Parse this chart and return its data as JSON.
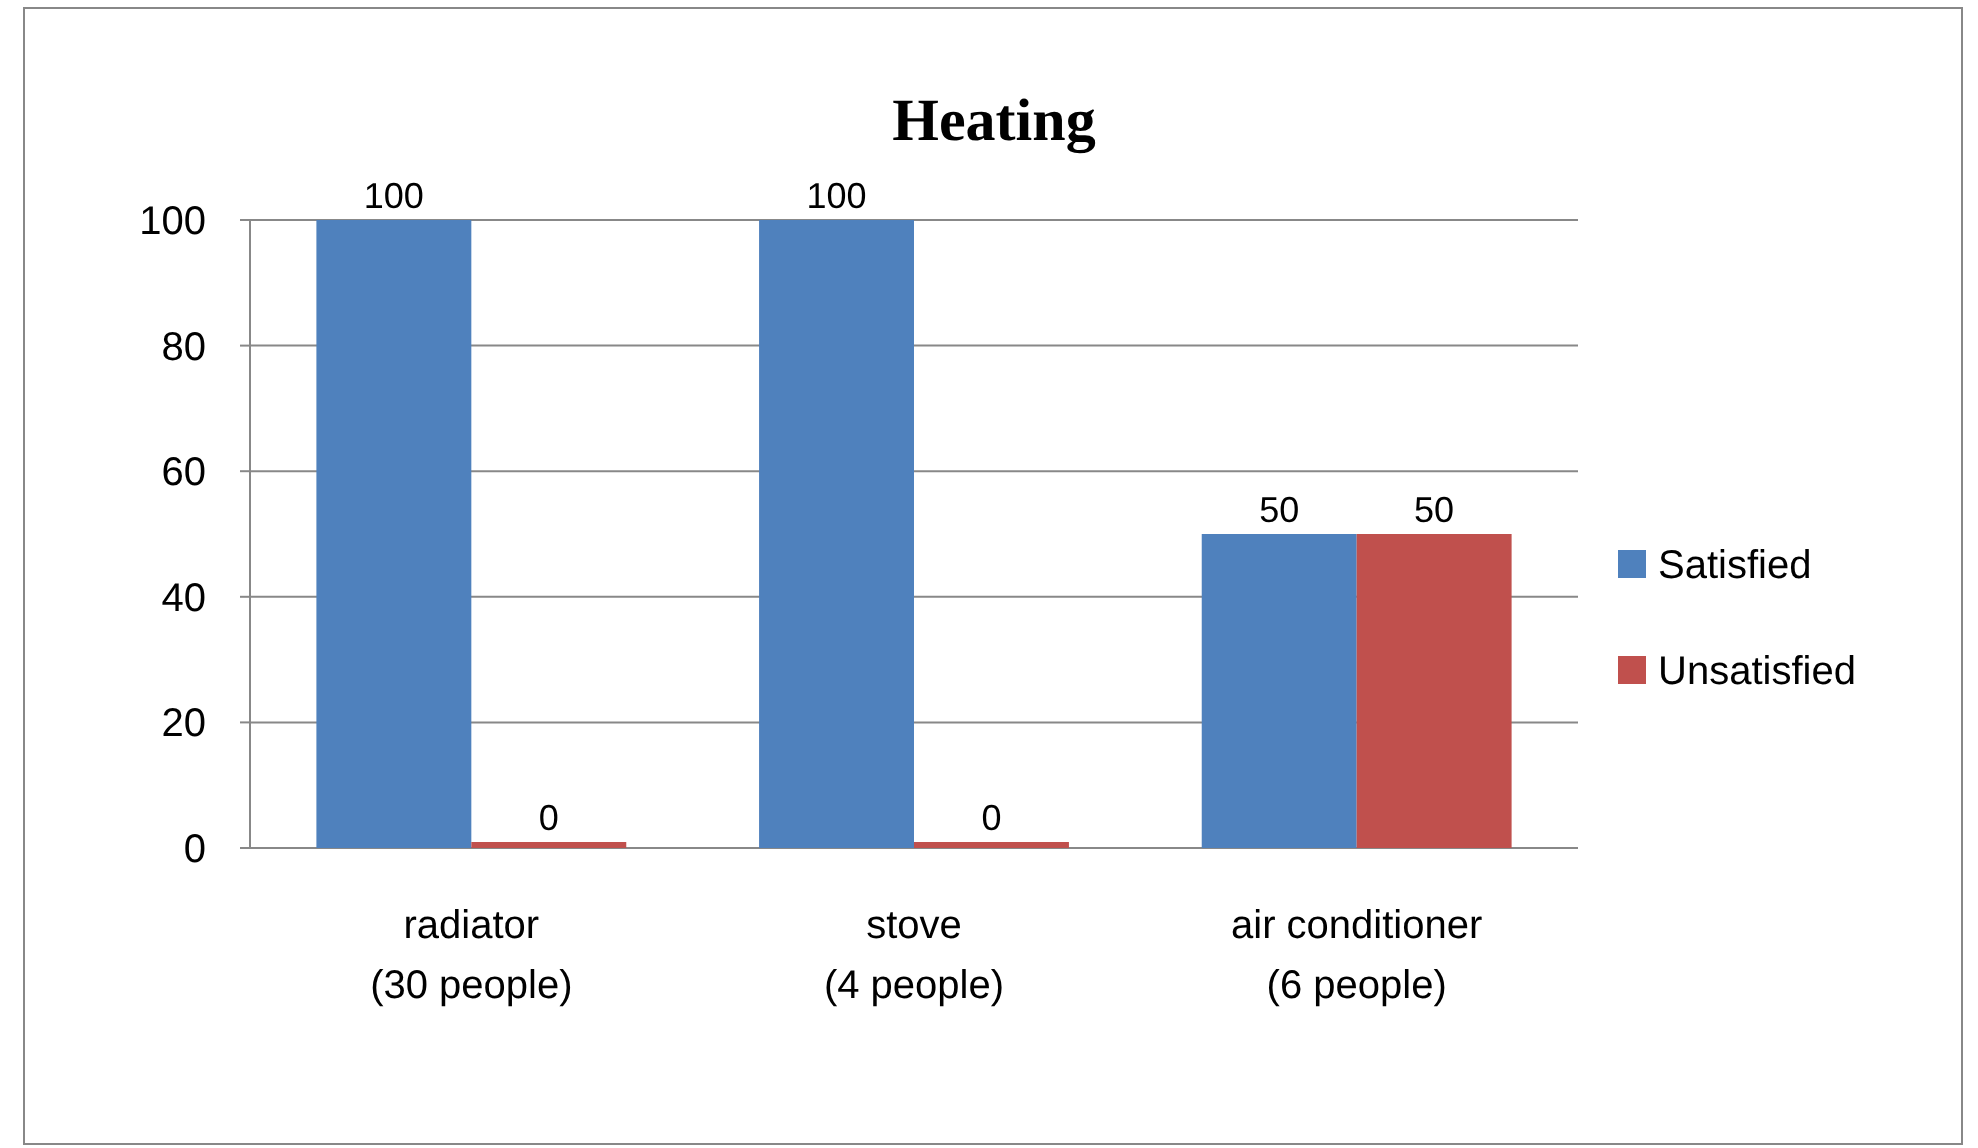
{
  "chart_data": {
    "type": "bar",
    "title": "Heating",
    "categories": [
      "radiator\n(30 people)",
      "stove\n(4 people)",
      "air conditioner\n(6 people)"
    ],
    "series": [
      {
        "name": "Satisfied",
        "color": "#4f81bd",
        "values": [
          100,
          100,
          50
        ]
      },
      {
        "name": "Unsatisfied",
        "color": "#c0504d",
        "values": [
          0,
          0,
          50
        ]
      }
    ],
    "ylim": [
      0,
      100
    ],
    "yticks": [
      0,
      20,
      40,
      60,
      80,
      100
    ],
    "grid": "y",
    "legend": "right",
    "data_labels": true
  }
}
